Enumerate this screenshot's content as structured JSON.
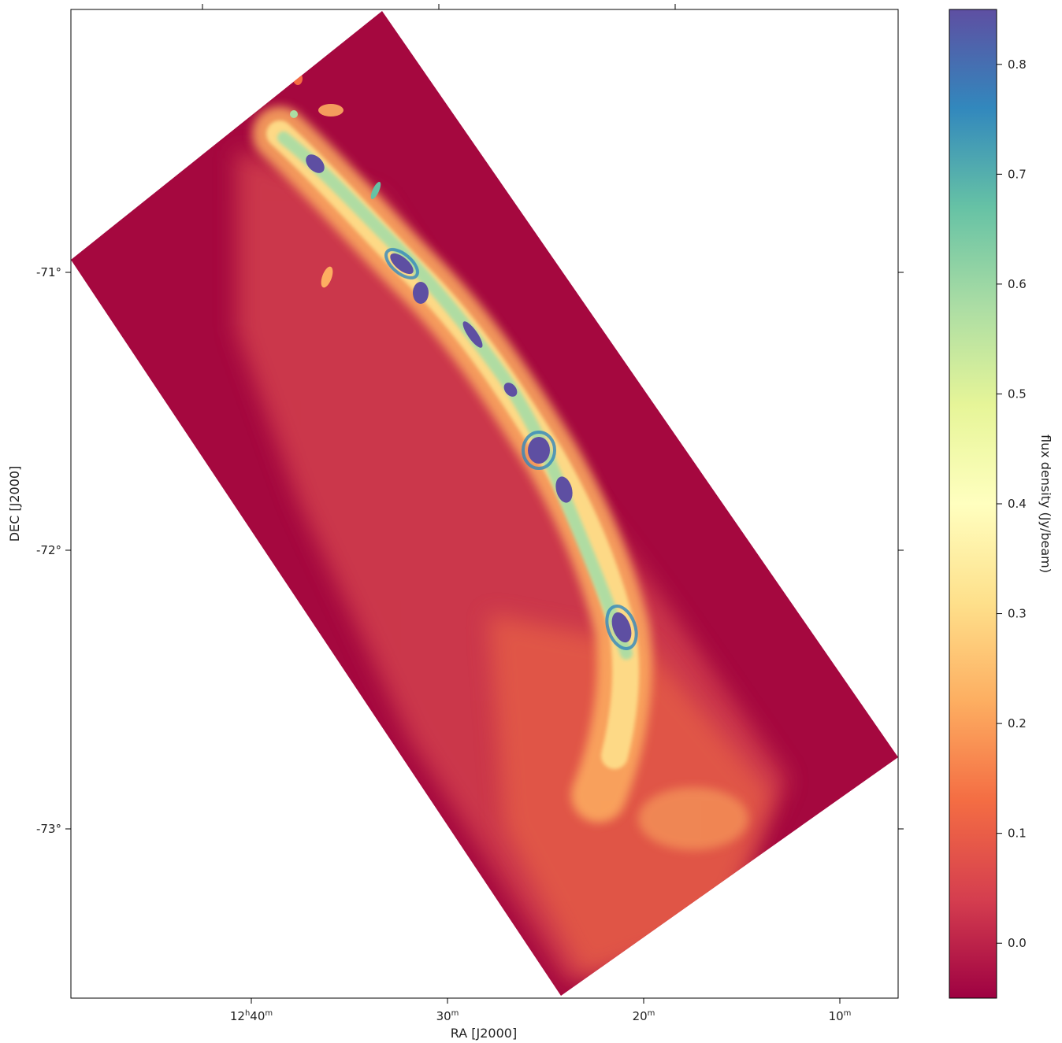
{
  "chart_data": {
    "type": "heatmap",
    "title": "",
    "xlabel": "RA [J2000]",
    "ylabel": "DEC [J2000]",
    "x_ticks": [
      {
        "label": "12",
        "sup_h": "h",
        "label2": "40",
        "sup_m": "m"
      },
      {
        "label": "30",
        "sup_m": "m"
      },
      {
        "label": "20",
        "sup_m": "m"
      },
      {
        "label": "10",
        "sup_m": "m"
      }
    ],
    "y_ticks": [
      "-71°",
      "-72°",
      "-73°"
    ],
    "colorbar": {
      "label": "flux density (Jy/beam)",
      "range": [
        -0.05,
        0.85
      ],
      "colormap": "Spectral",
      "ticks": [
        "0.0",
        "0.1",
        "0.2",
        "0.3",
        "0.4",
        "0.5",
        "0.6",
        "0.7",
        "0.8"
      ]
    },
    "colors": {
      "background_low": "#9e0142",
      "mid": "#fee08b",
      "high": "#5e4fa2"
    }
  }
}
